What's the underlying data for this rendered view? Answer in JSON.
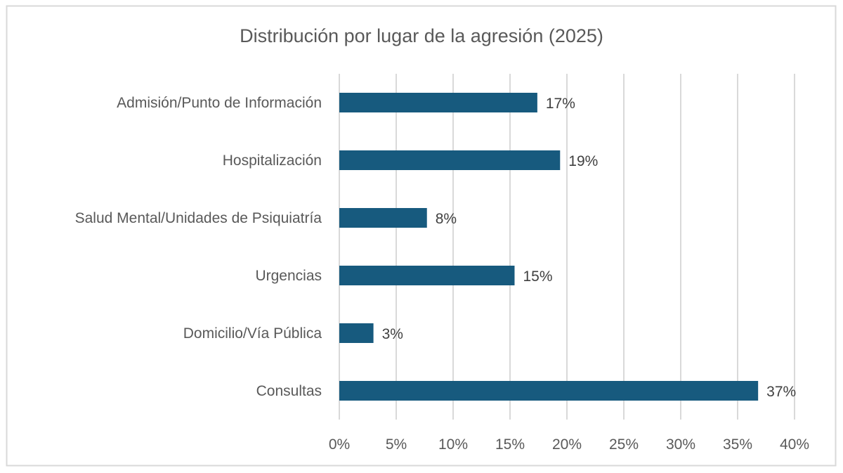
{
  "chart_data": {
    "type": "bar",
    "orientation": "horizontal",
    "title": "Distribución por lugar de la agresión (2025)",
    "xlabel": "",
    "ylabel": "",
    "categories": [
      "Admisión/Punto de Información",
      "Hospitalización",
      "Salud Mental/Unidades de Psiquiatría",
      "Urgencias",
      "Domicilio/Vía Pública",
      "Consultas"
    ],
    "values": [
      17.4,
      19.4,
      7.7,
      15.4,
      3.0,
      36.8
    ],
    "data_labels": [
      "17%",
      "19%",
      "8%",
      "15%",
      "3%",
      "37%"
    ],
    "xlim": [
      0,
      40
    ],
    "xticks": [
      0,
      5,
      10,
      15,
      20,
      25,
      30,
      35,
      40
    ],
    "xtick_labels": [
      "0%",
      "5%",
      "10%",
      "15%",
      "20%",
      "25%",
      "30%",
      "35%",
      "40%"
    ],
    "grid": "vertical",
    "legend": "none",
    "bar_color": "#175a7e",
    "grid_color": "#d9d9d9"
  }
}
